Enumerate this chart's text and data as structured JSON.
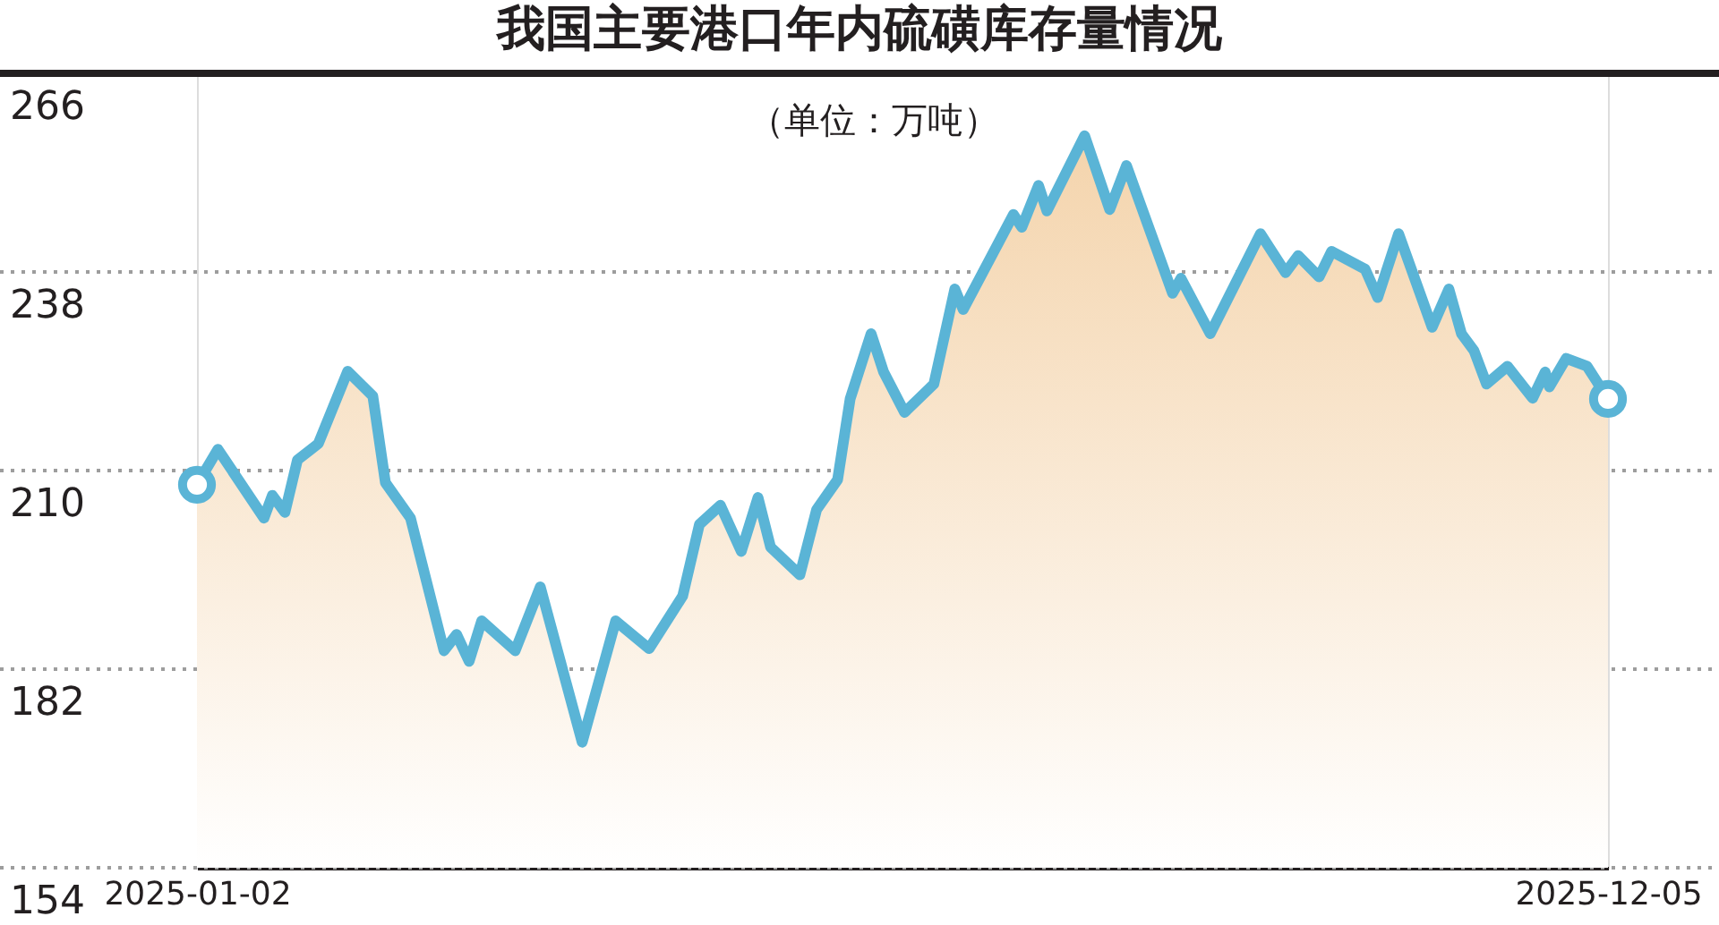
{
  "chart_data": {
    "type": "area",
    "title": "我国主要港口年内硫磺库存量情况",
    "subtitle": "（单位：万吨）",
    "x": [
      "2025-01-02",
      "2025-01-07",
      "2025-01-18",
      "2025-01-20",
      "2025-01-23",
      "2025-01-26",
      "2025-01-31",
      "2025-02-07",
      "2025-02-13",
      "2025-02-16",
      "2025-02-22",
      "2025-03-02",
      "2025-03-05",
      "2025-03-08",
      "2025-03-11",
      "2025-03-19",
      "2025-03-25",
      "2025-04-04",
      "2025-04-12",
      "2025-04-20",
      "2025-04-28",
      "2025-05-02",
      "2025-05-07",
      "2025-05-12",
      "2025-05-16",
      "2025-05-19",
      "2025-05-26",
      "2025-05-30",
      "2025-06-04",
      "2025-06-07",
      "2025-06-12",
      "2025-06-15",
      "2025-06-20",
      "2025-06-27",
      "2025-07-02",
      "2025-07-04",
      "2025-07-16",
      "2025-07-18",
      "2025-07-22",
      "2025-07-24",
      "2025-08-02",
      "2025-08-08",
      "2025-08-12",
      "2025-08-23",
      "2025-08-25",
      "2025-09-01",
      "2025-09-13",
      "2025-09-19",
      "2025-09-22",
      "2025-09-27",
      "2025-09-30",
      "2025-10-08",
      "2025-10-11",
      "2025-10-16",
      "2025-10-24",
      "2025-10-28",
      "2025-10-31",
      "2025-11-03",
      "2025-11-06",
      "2025-11-11",
      "2025-11-17",
      "2025-11-20",
      "2025-11-21",
      "2025-11-25",
      "2025-11-30",
      "2025-12-05"
    ],
    "series": [
      {
        "color": "#5ab4d6",
        "values": [
          208,
          213,
          203.3,
          206.5,
          204.1,
          211.5,
          213.8,
          224,
          220.5,
          208.3,
          203.3,
          184.6,
          186.9,
          183.1,
          188.8,
          184.6,
          193.6,
          171.7,
          188.8,
          184.9,
          192.3,
          202.4,
          205.1,
          198.6,
          206.2,
          199.2,
          195.3,
          204.5,
          208.7,
          220.1,
          229.3,
          223.9,
          218.2,
          222.2,
          235.6,
          232.7,
          246.1,
          244.3,
          250.2,
          246.6,
          257.2,
          246.8,
          253,
          235,
          237.1,
          229.3,
          243.4,
          237.9,
          240.3,
          237.3,
          240.9,
          238.4,
          234.4,
          243.4,
          230.2,
          235.6,
          229.3,
          226.9,
          222.2,
          224.7,
          220.2,
          223.9,
          221.8,
          225.8,
          224.7,
          220.1
        ]
      },
      {
        "type": "scatter",
        "color": "#5ab4d6",
        "marker": "circle",
        "x": [
          "2025-01-02",
          "2025-12-05"
        ],
        "values": [
          208,
          220.1
        ]
      }
    ],
    "xlim": [
      "2025-01-02",
      "2025-12-05"
    ],
    "xticks": [
      "2025-01-02",
      "2025-12-05"
    ],
    "ylim": [
      154,
      266
    ],
    "yticks": [
      154,
      182,
      210,
      238,
      266
    ],
    "grid": "y"
  }
}
